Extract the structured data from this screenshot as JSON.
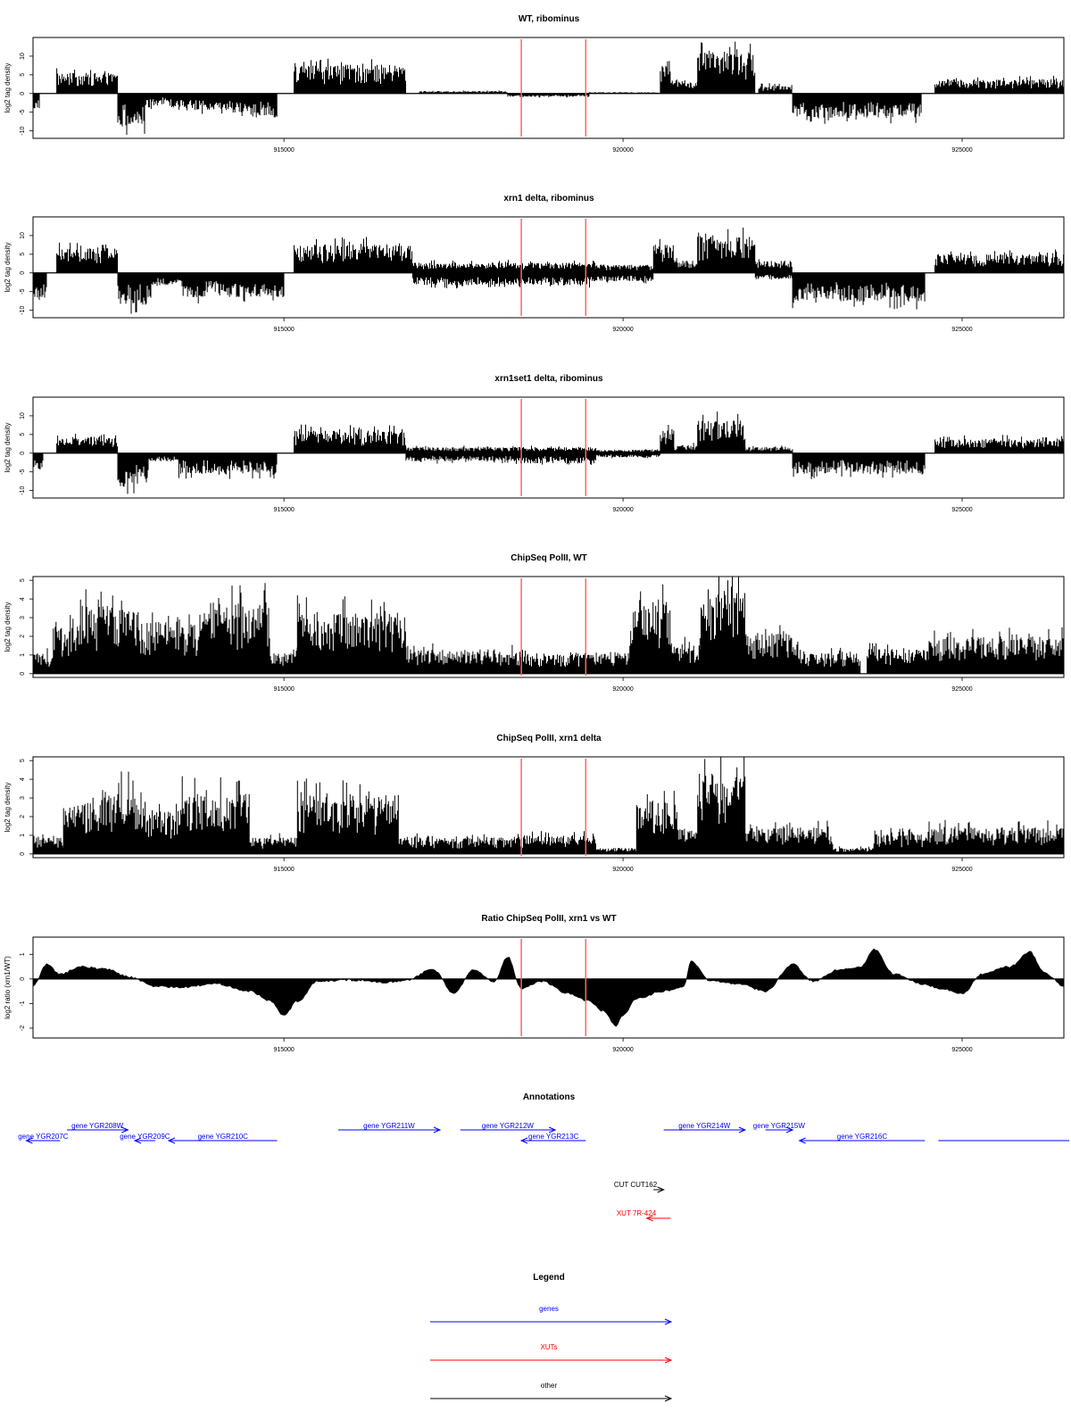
{
  "chart_data": [
    {
      "type": "area",
      "title": "WT, ribominus",
      "ylabel": "log2 tag density",
      "xlim": [
        911300,
        926500
      ],
      "ylim": [
        -12,
        15
      ],
      "yticks": [
        10,
        5,
        0,
        -5,
        -10
      ],
      "xticks": [
        915000,
        920000,
        925000
      ],
      "x_tick_labels": [
        "915000",
        "920000",
        "925000"
      ],
      "red_lines": [
        918500,
        919450
      ],
      "grid": false,
      "segments": [
        {
          "x": [
            911300,
            911400
          ],
          "value": -4
        },
        {
          "x": [
            911650,
            912550
          ],
          "value": 5
        },
        {
          "x": [
            912550,
            912950
          ],
          "value": -8
        },
        {
          "x": [
            912950,
            913400
          ],
          "value": -3
        },
        {
          "x": [
            913400,
            914250
          ],
          "value": -4
        },
        {
          "x": [
            914250,
            914900
          ],
          "value": -6
        },
        {
          "x": [
            915150,
            916800
          ],
          "value": 7
        },
        {
          "x": [
            917000,
            918300
          ],
          "value": 0.6
        },
        {
          "x": [
            918300,
            919500
          ],
          "value": -0.8
        },
        {
          "x": [
            919500,
            920550
          ],
          "value": 0.3
        },
        {
          "x": [
            920550,
            920700
          ],
          "value": 8
        },
        {
          "x": [
            920700,
            921100
          ],
          "value": 3
        },
        {
          "x": [
            921100,
            921950
          ],
          "value": 10
        },
        {
          "x": [
            922000,
            922500
          ],
          "value": 2
        },
        {
          "x": [
            922500,
            924400
          ],
          "value": -6
        },
        {
          "x": [
            924600,
            926500
          ],
          "value": 3.5
        }
      ]
    },
    {
      "type": "area",
      "title": "xrn1 delta, ribominus",
      "ylabel": "log2 tag density",
      "xlim": [
        911300,
        926500
      ],
      "ylim": [
        -12,
        15
      ],
      "yticks": [
        10,
        5,
        0,
        -5,
        -10
      ],
      "xticks": [
        915000,
        920000,
        925000
      ],
      "x_tick_labels": [
        "915000",
        "920000",
        "925000"
      ],
      "red_lines": [
        918500,
        919450
      ],
      "grid": false,
      "segments": [
        {
          "x": [
            911300,
            911500
          ],
          "value": -6
        },
        {
          "x": [
            911650,
            912550
          ],
          "value": 6
        },
        {
          "x": [
            912550,
            913050
          ],
          "value": -8
        },
        {
          "x": [
            913050,
            913500
          ],
          "value": -3
        },
        {
          "x": [
            913500,
            914300
          ],
          "value": -6
        },
        {
          "x": [
            914300,
            915000
          ],
          "value": -6
        },
        {
          "x": [
            915150,
            916900
          ],
          "value": 7
        },
        {
          "x": [
            916900,
            918400
          ],
          "value": 2.5
        },
        {
          "x": [
            916900,
            918400
          ],
          "value": -3
        },
        {
          "x": [
            918400,
            919600
          ],
          "value": 2.5
        },
        {
          "x": [
            918400,
            919600
          ],
          "value": -3
        },
        {
          "x": [
            919600,
            920450
          ],
          "value": 2
        },
        {
          "x": [
            919600,
            920450
          ],
          "value": -2
        },
        {
          "x": [
            920450,
            920750
          ],
          "value": 7
        },
        {
          "x": [
            920750,
            921100
          ],
          "value": 3
        },
        {
          "x": [
            921100,
            921950
          ],
          "value": 9
        },
        {
          "x": [
            921950,
            922500
          ],
          "value": 3
        },
        {
          "x": [
            921950,
            922500
          ],
          "value": -1.5
        },
        {
          "x": [
            922500,
            924450
          ],
          "value": -7
        },
        {
          "x": [
            924600,
            926500
          ],
          "value": 4.5
        }
      ]
    },
    {
      "type": "area",
      "title": "xrn1set1 delta, ribominus",
      "ylabel": "log2 tag density",
      "xlim": [
        911300,
        926500
      ],
      "ylim": [
        -12,
        15
      ],
      "yticks": [
        10,
        5,
        0,
        -5,
        -10
      ],
      "xticks": [
        915000,
        920000,
        925000
      ],
      "x_tick_labels": [
        "915000",
        "920000",
        "925000"
      ],
      "red_lines": [
        918500,
        919450
      ],
      "grid": false,
      "segments": [
        {
          "x": [
            911300,
            911450
          ],
          "value": -4
        },
        {
          "x": [
            911650,
            912550
          ],
          "value": 4
        },
        {
          "x": [
            912550,
            913000
          ],
          "value": -8
        },
        {
          "x": [
            913000,
            913450
          ],
          "value": -2
        },
        {
          "x": [
            913450,
            914300
          ],
          "value": -5
        },
        {
          "x": [
            914300,
            914900
          ],
          "value": -5
        },
        {
          "x": [
            915150,
            916800
          ],
          "value": 5.5
        },
        {
          "x": [
            916800,
            918400
          ],
          "value": 1.5
        },
        {
          "x": [
            916800,
            918400
          ],
          "value": -2
        },
        {
          "x": [
            918400,
            919600
          ],
          "value": 1.5
        },
        {
          "x": [
            918400,
            919600
          ],
          "value": -2.5
        },
        {
          "x": [
            919600,
            920550
          ],
          "value": 0.8
        },
        {
          "x": [
            919600,
            920550
          ],
          "value": -1
        },
        {
          "x": [
            920550,
            920750
          ],
          "value": 6
        },
        {
          "x": [
            920750,
            921100
          ],
          "value": 2
        },
        {
          "x": [
            921100,
            921800
          ],
          "value": 8
        },
        {
          "x": [
            921800,
            922500
          ],
          "value": 1.5
        },
        {
          "x": [
            922500,
            924450
          ],
          "value": -5
        },
        {
          "x": [
            924600,
            926500
          ],
          "value": 3.5
        }
      ]
    },
    {
      "type": "area",
      "title": "ChipSeq PolII, WT",
      "ylabel": "log2 tag density",
      "xlim": [
        911300,
        926500
      ],
      "ylim": [
        -0.2,
        5.2
      ],
      "yticks": [
        0,
        1,
        2,
        3,
        4,
        5
      ],
      "xticks": [
        915000,
        920000,
        925000
      ],
      "x_tick_labels": [
        "915000",
        "920000",
        "925000"
      ],
      "red_lines": [
        918500,
        919450
      ],
      "grid": false,
      "segments": [
        {
          "x": [
            911300,
            911600
          ],
          "value": 1
        },
        {
          "x": [
            911600,
            912000
          ],
          "value": 2.3
        },
        {
          "x": [
            912000,
            912850
          ],
          "value": 3.3
        },
        {
          "x": [
            912850,
            913300
          ],
          "value": 2.6
        },
        {
          "x": [
            913300,
            913800
          ],
          "value": 2.4
        },
        {
          "x": [
            913800,
            914800
          ],
          "value": 3.5
        },
        {
          "x": [
            914800,
            915200
          ],
          "value": 1
        },
        {
          "x": [
            915200,
            916800
          ],
          "value": 3
        },
        {
          "x": [
            916800,
            918400
          ],
          "value": 1.2
        },
        {
          "x": [
            918400,
            919500
          ],
          "value": 1
        },
        {
          "x": [
            919500,
            920100
          ],
          "value": 1
        },
        {
          "x": [
            920100,
            920700
          ],
          "value": 3.5
        },
        {
          "x": [
            920700,
            921150
          ],
          "value": 1.5
        },
        {
          "x": [
            921150,
            921800
          ],
          "value": 4.3
        },
        {
          "x": [
            921800,
            922600
          ],
          "value": 2
        },
        {
          "x": [
            922600,
            923500
          ],
          "value": 1
        },
        {
          "x": [
            923600,
            924500
          ],
          "value": 1.2
        },
        {
          "x": [
            924500,
            926500
          ],
          "value": 1.8
        }
      ]
    },
    {
      "type": "area",
      "title": "ChipSeq PolII, xrn1 delta",
      "ylabel": "log2 tag density",
      "xlim": [
        911300,
        926500
      ],
      "ylim": [
        -0.2,
        5.2
      ],
      "yticks": [
        0,
        1,
        2,
        3,
        4,
        5
      ],
      "xticks": [
        915000,
        920000,
        925000
      ],
      "x_tick_labels": [
        "915000",
        "920000",
        "925000"
      ],
      "red_lines": [
        918500,
        919450
      ],
      "grid": false,
      "segments": [
        {
          "x": [
            911300,
            911750
          ],
          "value": 0.8
        },
        {
          "x": [
            911750,
            912300
          ],
          "value": 2.5
        },
        {
          "x": [
            912300,
            912900
          ],
          "value": 3.2
        },
        {
          "x": [
            912900,
            913500
          ],
          "value": 2.2
        },
        {
          "x": [
            913500,
            914500
          ],
          "value": 3
        },
        {
          "x": [
            914500,
            915200
          ],
          "value": 0.8
        },
        {
          "x": [
            915200,
            916700
          ],
          "value": 2.9
        },
        {
          "x": [
            916700,
            918400
          ],
          "value": 0.8
        },
        {
          "x": [
            918400,
            919600
          ],
          "value": 0.9
        },
        {
          "x": [
            919600,
            920200
          ],
          "value": 0.3
        },
        {
          "x": [
            920200,
            920800
          ],
          "value": 2.6
        },
        {
          "x": [
            920800,
            921100
          ],
          "value": 1.3
        },
        {
          "x": [
            921100,
            921800
          ],
          "value": 4
        },
        {
          "x": [
            921800,
            923100
          ],
          "value": 1.3
        },
        {
          "x": [
            923100,
            923700
          ],
          "value": 0.3
        },
        {
          "x": [
            923700,
            924500
          ],
          "value": 1
        },
        {
          "x": [
            924500,
            926500
          ],
          "value": 1.3
        }
      ]
    },
    {
      "type": "area",
      "title": "Ratio ChipSeq PolII, xrn1 vs WT",
      "ylabel": "log2 ratio (xrn1/WT)",
      "xlim": [
        911300,
        926500
      ],
      "ylim": [
        -2.4,
        1.7
      ],
      "yticks": [
        1,
        0,
        -1,
        -2
      ],
      "xticks": [
        915000,
        920000,
        925000
      ],
      "x_tick_labels": [
        "915000",
        "920000",
        "925000"
      ],
      "red_lines": [
        918500,
        919450
      ],
      "grid": false,
      "curve": {
        "x": [
          911300,
          911500,
          911700,
          912000,
          912400,
          912700,
          913100,
          913500,
          914000,
          914500,
          914800,
          915000,
          915200,
          915500,
          916000,
          916500,
          916800,
          917200,
          917500,
          917800,
          918100,
          918300,
          918500,
          918800,
          919200,
          919500,
          919700,
          919900,
          920000,
          920200,
          920600,
          920900,
          921000,
          921300,
          921700,
          922100,
          922500,
          922800,
          923200,
          923500,
          923700,
          924000,
          924400,
          924700,
          925000,
          925300,
          925700,
          926000,
          926200,
          926500
        ],
        "y": [
          -0.3,
          0.6,
          0.2,
          0.5,
          0.4,
          0.1,
          -0.3,
          -0.35,
          -0.2,
          -0.5,
          -0.9,
          -1.5,
          -0.9,
          -0.1,
          -0.05,
          -0.15,
          -0.05,
          0.4,
          -0.6,
          0.4,
          -0.1,
          0.9,
          -0.4,
          -0.1,
          -0.6,
          -0.9,
          -1.3,
          -1.9,
          -1.5,
          -0.8,
          -0.5,
          -0.3,
          0.7,
          -0.1,
          -0.2,
          -0.5,
          0.6,
          -0.1,
          0.4,
          0.5,
          1.2,
          0.2,
          -0.2,
          -0.4,
          -0.6,
          0.2,
          0.5,
          1.1,
          0.3,
          -0.3
        ]
      }
    }
  ],
  "annotations": {
    "title": "Annotations",
    "genes": [
      {
        "label": "gene YGR207C",
        "x": [
          911200,
          911700
        ],
        "dir": "left",
        "row": 1
      },
      {
        "label": "gene YGR208W",
        "x": [
          911800,
          912700
        ],
        "dir": "right",
        "row": 0
      },
      {
        "label": "gene YGR209C",
        "x": [
          912800,
          913100
        ],
        "dir": "left",
        "row": 1
      },
      {
        "label": "gene YGR210C",
        "x": [
          913300,
          914900
        ],
        "dir": "left",
        "row": 1
      },
      {
        "label": "gene YGR211W",
        "x": [
          915800,
          917300
        ],
        "dir": "right",
        "row": 0
      },
      {
        "label": "gene YGR212W",
        "x": [
          917600,
          919000
        ],
        "dir": "right",
        "row": 0
      },
      {
        "label": "gene YGR213C",
        "x": [
          918500,
          919450
        ],
        "dir": "left",
        "row": 1
      },
      {
        "label": "gene YGR214W",
        "x": [
          920600,
          921800
        ],
        "dir": "right",
        "row": 0
      },
      {
        "label": "gene YGR215W",
        "x": [
          922100,
          922500
        ],
        "dir": "right",
        "row": 0
      },
      {
        "label": "gene YGR216C",
        "x": [
          922600,
          924450
        ],
        "dir": "left",
        "row": 1
      },
      {
        "label": "",
        "x": [
          924650,
          926800
        ],
        "dir": "right",
        "row": 1
      }
    ],
    "cuts": [
      {
        "label": "CUT CUT162",
        "x": [
          920450,
          920600
        ],
        "dir": "right"
      }
    ],
    "xuts": [
      {
        "label": "XUT 7R-424",
        "x": [
          920350,
          920700
        ],
        "dir": "left"
      }
    ]
  },
  "legend": {
    "title": "Legend",
    "items": [
      {
        "label": "genes",
        "color": "#0000ff"
      },
      {
        "label": "XUTs",
        "color": "#ff0000"
      },
      {
        "label": "other",
        "color": "#000000"
      }
    ]
  },
  "colors": {
    "bars": "#000000",
    "marker_lines": "#ff6666",
    "genes": "#0000ff",
    "xuts": "#ff0000",
    "other": "#000000"
  }
}
